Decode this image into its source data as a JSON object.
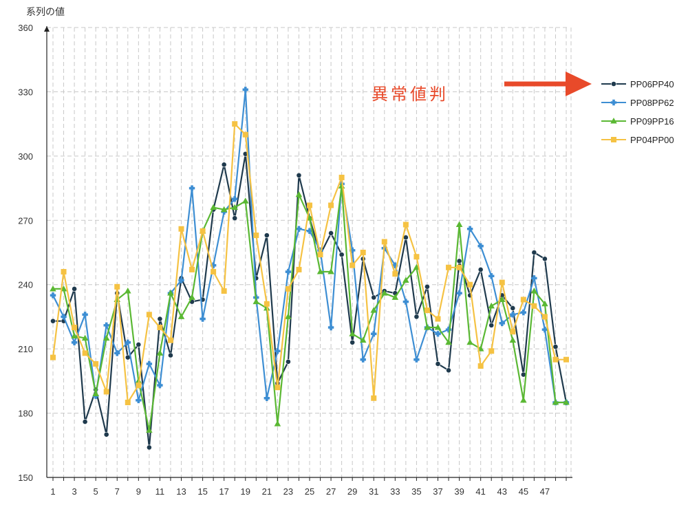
{
  "chart_data": {
    "type": "line",
    "title": "",
    "xlabel": "",
    "ylabel": "系列の値",
    "ylim": [
      150,
      360
    ],
    "yticks": [
      150,
      180,
      210,
      240,
      270,
      300,
      330,
      360
    ],
    "x": [
      1,
      2,
      3,
      4,
      5,
      6,
      7,
      8,
      9,
      10,
      11,
      12,
      13,
      14,
      15,
      16,
      17,
      18,
      19,
      20,
      21,
      22,
      23,
      24,
      25,
      26,
      27,
      28,
      29,
      30,
      31,
      32,
      33,
      34,
      35,
      36,
      37,
      38,
      39,
      40,
      41,
      42,
      43,
      44,
      45,
      46,
      47,
      48,
      49
    ],
    "xticks": [
      1,
      3,
      5,
      7,
      9,
      11,
      13,
      15,
      17,
      19,
      21,
      23,
      25,
      27,
      29,
      31,
      33,
      35,
      37,
      39,
      41,
      43,
      45,
      47
    ],
    "grid": true,
    "legend_position": "right",
    "annotation": "異常値判",
    "series": [
      {
        "name": "PP06PP40",
        "color": "#1f3a4d",
        "marker": "circle",
        "values": [
          223,
          223,
          238,
          176,
          191,
          170,
          236,
          206,
          212,
          164,
          224,
          207,
          243,
          232,
          233,
          275,
          296,
          271,
          301,
          243,
          263,
          194,
          204,
          291,
          271,
          254,
          264,
          254,
          213,
          252,
          234,
          237,
          236,
          262,
          225,
          239,
          203,
          200,
          251,
          235,
          247,
          221,
          235,
          229,
          198,
          255,
          252,
          211,
          185
        ]
      },
      {
        "name": "PP08PP62",
        "color": "#3d8ed3",
        "marker": "cross",
        "values": [
          235,
          225,
          213,
          226,
          188,
          221,
          208,
          213,
          186,
          203,
          193,
          236,
          242,
          285,
          224,
          249,
          274,
          280,
          331,
          234,
          187,
          209,
          246,
          266,
          265,
          256,
          220,
          287,
          256,
          205,
          217,
          257,
          249,
          232,
          205,
          220,
          217,
          219,
          236,
          266,
          258,
          244,
          222,
          226,
          227,
          243,
          219,
          185,
          185
        ]
      },
      {
        "name": "PP09PP16",
        "color": "#5ab833",
        "marker": "triangle",
        "values": [
          238,
          238,
          216,
          215,
          189,
          215,
          233,
          237,
          195,
          172,
          208,
          236,
          225,
          234,
          265,
          276,
          275,
          276,
          279,
          232,
          229,
          175,
          225,
          282,
          271,
          246,
          246,
          286,
          217,
          214,
          228,
          236,
          234,
          242,
          248,
          220,
          220,
          213,
          268,
          213,
          210,
          230,
          233,
          214,
          186,
          237,
          231,
          185,
          185
        ]
      },
      {
        "name": "PP04PP00",
        "color": "#f5c243",
        "marker": "square",
        "values": [
          206,
          246,
          220,
          208,
          203,
          190,
          239,
          185,
          193,
          226,
          220,
          214,
          266,
          247,
          265,
          246,
          237,
          315,
          310,
          263,
          231,
          192,
          238,
          247,
          277,
          254,
          277,
          290,
          249,
          255,
          187,
          260,
          245,
          268,
          253,
          228,
          224,
          248,
          248,
          240,
          202,
          209,
          241,
          218,
          233,
          230,
          225,
          205,
          205
        ]
      }
    ]
  }
}
